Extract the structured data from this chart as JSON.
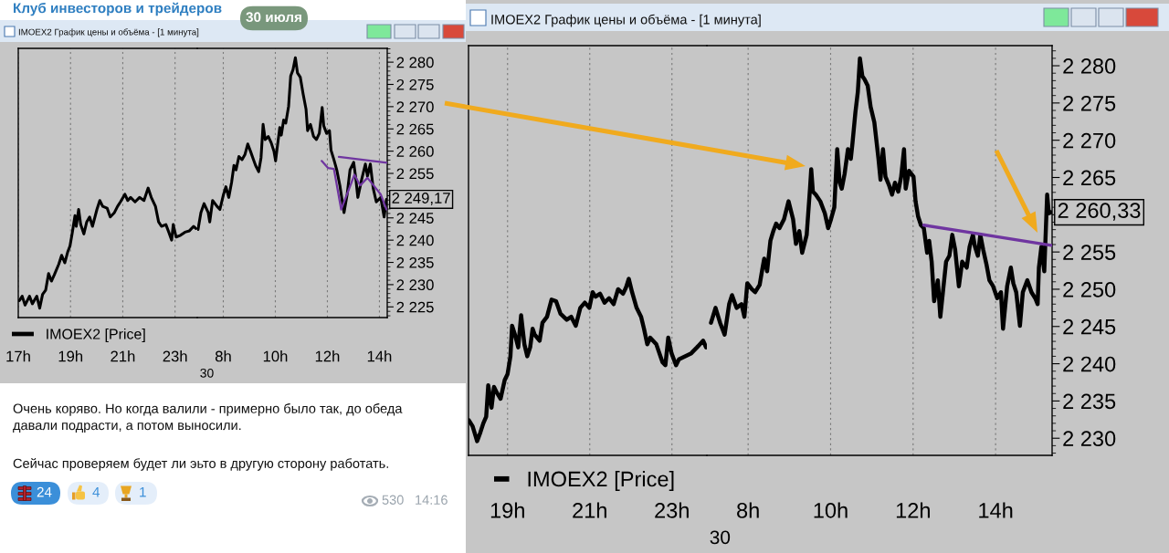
{
  "chart_data": [
    {
      "type": "other",
      "title": "Клуб инвесторов и трейдеров",
      "annotations": [
        "30 июля"
      ]
    },
    {
      "type": "line",
      "title": "IMOEX2 График цены и объёма - [1 минута]",
      "series": [
        {
          "name": "IMOEX2 [Price]",
          "color": "#000000",
          "x": [
            17.04,
            17.15,
            17.26,
            17.43,
            17.54,
            17.71,
            17.82,
            17.93,
            18.05,
            18.16,
            18.27,
            18.38,
            18.55,
            18.66,
            18.78,
            18.89,
            18.98,
            19.06,
            19.17,
            19.22,
            19.31,
            19.39,
            19.51,
            19.62,
            19.73,
            19.84,
            20.01,
            20.12,
            20.23,
            20.4,
            20.52,
            20.68,
            20.8,
            20.91,
            21.08,
            21.19,
            21.3,
            21.47,
            21.64,
            21.81,
            21.97,
            22.09,
            22.25,
            22.37,
            22.48,
            22.65,
            22.76,
            22.87,
            22.93,
            23.04,
            23.21,
            23.38,
            23.55,
            23.71,
            23.8
          ],
          "values": [
            2226.4,
            2227.4,
            2225.4,
            2227.4,
            2225.7,
            2227.4,
            2224.7,
            2227.8,
            2228.8,
            2232.5,
            2230.8,
            2232.2,
            2234.6,
            2236.6,
            2234.9,
            2237.3,
            2238.7,
            2241.4,
            2245.5,
            2243.1,
            2246.9,
            2243.5,
            2241.4,
            2244.1,
            2245.2,
            2243.1,
            2246.9,
            2248.9,
            2247.6,
            2247.2,
            2245.2,
            2246.2,
            2247.6,
            2248.6,
            2250.3,
            2248.9,
            2249.6,
            2248.6,
            2249.6,
            2248.9,
            2251.7,
            2249.6,
            2247.6,
            2244.1,
            2243.1,
            2243.5,
            2241.8,
            2240.0,
            2243.5,
            2240.7,
            2241.1,
            2241.8,
            2242.1,
            2243.1,
            2242.6
          ]
        }
      ],
      "xlim": [
        17.0,
        23.85
      ],
      "xticks": [
        {
          "value": 17,
          "label": "17h"
        },
        {
          "value": 19,
          "label": "19h"
        },
        {
          "value": 21,
          "label": "21h"
        },
        {
          "value": 23,
          "label": "23h"
        }
      ],
      "ylim": [
        2222.6,
        2283.1
      ],
      "tick_labels": "x",
      "grid": "x",
      "legend": "bottom left"
    },
    {
      "type": "line",
      "series": [
        {
          "color": "#000000",
          "x": [
            7.03,
            7.14,
            7.26,
            7.42,
            7.48,
            7.59,
            7.76,
            7.87,
            8.01,
            8.1,
            8.21,
            8.32,
            8.41,
            8.49,
            8.6,
            8.72,
            8.83,
            8.94,
            9.05,
            9.16,
            9.24,
            9.36,
            9.45,
            9.53,
            9.61,
            9.73,
            9.84,
            9.95,
            10.01,
            10.06,
            10.17,
            10.23,
            10.32,
            10.4,
            10.51,
            10.59,
            10.68,
            10.77,
            10.85,
            10.96,
            11.07,
            11.18,
            11.24,
            11.35,
            11.47,
            11.58,
            11.69,
            11.8,
            11.86,
            11.97,
            12.08,
            12.14,
            12.25,
            12.36,
            12.48,
            12.64,
            12.76,
            12.87,
            13.01,
            13.09,
            13.17,
            13.32,
            13.46,
            13.54,
            13.65,
            13.76,
            13.88,
            14.05,
            14.18,
            14.27
          ],
          "values": [
            2242.4,
            2246.2,
            2248.2,
            2246.2,
            2244.1,
            2248.9,
            2247.6,
            2246.9,
            2250.3,
            2252.0,
            2249.6,
            2253.0,
            2256.8,
            2255.8,
            2258.8,
            2258.1,
            2259.2,
            2261.6,
            2259.9,
            2258.1,
            2256.8,
            2255.4,
            2258.5,
            2266.0,
            2262.6,
            2263.3,
            2261.9,
            2259.9,
            2257.8,
            2260.2,
            2265.3,
            2263.6,
            2267.0,
            2266.3,
            2270.1,
            2276.9,
            2278.3,
            2281.0,
            2277.6,
            2276.6,
            2272.8,
            2269.4,
            2264.6,
            2266.0,
            2263.3,
            2262.6,
            2264.0,
            2269.8,
            2265.7,
            2264.0,
            2264.6,
            2260.2,
            2258.1,
            2255.8,
            2252.3,
            2246.2,
            2250.3,
            2255.8,
            2257.5,
            2254.0,
            2249.6,
            2253.7,
            2257.1,
            2254.4,
            2257.1,
            2251.7,
            2248.6,
            2249.6,
            2245.2,
            2249.17
          ],
          "value_labels": [
            null,
            null,
            null,
            null,
            null,
            null,
            null,
            null,
            null,
            null,
            null,
            null,
            null,
            null,
            null,
            null,
            null,
            null,
            null,
            null,
            null,
            null,
            null,
            null,
            null,
            null,
            null,
            null,
            null,
            null,
            null,
            null,
            null,
            null,
            null,
            null,
            null,
            null,
            null,
            null,
            null,
            null,
            null,
            null,
            null,
            null,
            null,
            null,
            null,
            null,
            null,
            null,
            null,
            null,
            null,
            null,
            null,
            null,
            null,
            null,
            null,
            null,
            null,
            null,
            null,
            null,
            null,
            null,
            null,
            "2 249,17"
          ]
        },
        {
          "color": "#6f35a0",
          "x": [
            12.44,
            14.3
          ],
          "values": [
            2258.7,
            2257.4
          ]
        },
        {
          "color": "#6f35a0",
          "x": [
            11.78,
            12.03,
            12.25,
            12.53,
            13.04,
            13.26,
            13.54,
            14.05,
            14.27
          ],
          "values": [
            2257.8,
            2256.2,
            2256.0,
            2246.9,
            2254.7,
            2252.3,
            2254.0,
            2250.3,
            2246.9
          ]
        }
      ],
      "xlim": [
        7.0,
        14.3
      ],
      "xticks": [
        {
          "value": 8,
          "label": "8h"
        },
        {
          "value": 10,
          "label": "10h"
        },
        {
          "value": 12,
          "label": "12h"
        },
        {
          "value": 14,
          "label": "14h"
        }
      ],
      "ylim": [
        2222.6,
        2283.1
      ],
      "yticks": [
        {
          "value": 2225,
          "label": "2 225"
        },
        {
          "value": 2230,
          "label": "2 230"
        },
        {
          "value": 2235,
          "label": "2 235"
        },
        {
          "value": 2240,
          "label": "2 240"
        },
        {
          "value": 2245,
          "label": "2 245"
        },
        {
          "value": 2250,
          "label": null
        },
        {
          "value": 2255,
          "label": "2 255"
        },
        {
          "value": 2260,
          "label": "2 260"
        },
        {
          "value": 2265,
          "label": "2 265"
        },
        {
          "value": 2270,
          "label": "2 270"
        },
        {
          "value": 2275,
          "label": "2 275"
        },
        {
          "value": 2280,
          "label": "2 280"
        }
      ],
      "grid": "x",
      "annotations": [
        "30"
      ]
    },
    {
      "type": "other",
      "annotations": [
        "Очень коряво. Но когда валили - примерно было так, до обеда\nдавали подрасти, а потом выносили.",
        "Сейчас проверяем будет ли эьто в другую сторону работать.",
        "24",
        "4",
        "1",
        "530",
        "14:16"
      ]
    },
    {
      "type": "line",
      "title": "IMOEX2 График цены и объёма - [1 минута]",
      "series": [
        {
          "name": "IMOEX2 [Price]",
          "color": "#000000",
          "x": [
            18.06,
            18.15,
            18.26,
            18.34,
            18.41,
            18.48,
            18.53,
            18.61,
            18.67,
            18.74,
            18.83,
            18.93,
            19.0,
            19.07,
            19.11,
            19.18,
            19.26,
            19.33,
            19.41,
            19.48,
            19.55,
            19.61,
            19.66,
            19.78,
            19.85,
            19.96,
            20.07,
            20.18,
            20.29,
            20.44,
            20.55,
            20.66,
            20.77,
            20.88,
            20.99,
            21.07,
            21.14,
            21.25,
            21.36,
            21.47,
            21.58,
            21.69,
            21.81,
            21.88,
            21.95,
            22.03,
            22.14,
            22.25,
            22.32,
            22.4,
            22.47,
            22.62,
            22.77,
            22.84,
            22.91,
            22.99,
            23.1,
            23.17,
            23.32,
            23.47,
            23.61,
            23.76,
            23.83
          ],
          "values": [
            2232.4,
            2231.6,
            2229.6,
            2230.8,
            2232.0,
            2232.9,
            2237.1,
            2234.1,
            2236.9,
            2236.1,
            2235.3,
            2237.8,
            2238.6,
            2241.0,
            2245.1,
            2243.9,
            2242.2,
            2246.5,
            2242.6,
            2241.0,
            2242.2,
            2244.7,
            2243.9,
            2243.1,
            2245.5,
            2246.3,
            2248.6,
            2248.4,
            2246.7,
            2245.9,
            2246.3,
            2245.1,
            2247.5,
            2248.2,
            2247.5,
            2249.6,
            2249.0,
            2249.4,
            2248.2,
            2248.8,
            2248.0,
            2250.0,
            2249.4,
            2250.2,
            2251.4,
            2249.6,
            2247.5,
            2246.3,
            2244.7,
            2242.6,
            2243.5,
            2242.6,
            2240.2,
            2239.8,
            2243.5,
            2241.4,
            2239.8,
            2240.6,
            2241.0,
            2241.4,
            2242.2,
            2243.1,
            2242.2
          ]
        }
      ],
      "xlim": [
        18.05,
        23.85
      ],
      "xticks": [
        {
          "value": 19,
          "label": "19h"
        },
        {
          "value": 21,
          "label": "21h"
        },
        {
          "value": 23,
          "label": "23h"
        }
      ],
      "ylim": [
        2227.7,
        2282.7
      ],
      "tick_labels": "x",
      "grid": "x",
      "legend": "bottom left"
    },
    {
      "type": "line",
      "series": [
        {
          "color": "#000000",
          "x": [
            7.1,
            7.21,
            7.32,
            7.43,
            7.54,
            7.61,
            7.72,
            7.84,
            7.91,
            7.98,
            8.09,
            8.17,
            8.28,
            8.35,
            8.39,
            8.46,
            8.54,
            8.61,
            8.68,
            8.76,
            8.87,
            8.98,
            9.09,
            9.16,
            9.24,
            9.31,
            9.42,
            9.5,
            9.53,
            9.57,
            9.64,
            9.75,
            9.86,
            9.94,
            10.01,
            10.09,
            10.16,
            10.22,
            10.27,
            10.34,
            10.42,
            10.49,
            10.53,
            10.6,
            10.66,
            10.71,
            10.77,
            10.82,
            10.9,
            10.97,
            11.06,
            11.16,
            11.21,
            11.27,
            11.33,
            11.42,
            11.49,
            11.56,
            11.64,
            11.71,
            11.78,
            11.82,
            11.9,
            12.01,
            12.06,
            12.12,
            12.19,
            12.26,
            12.34,
            12.39,
            12.45,
            12.51,
            12.6,
            12.66,
            12.73,
            12.8,
            12.88,
            12.95,
            13.02,
            13.11,
            13.19,
            13.3,
            13.37,
            13.45,
            13.5,
            13.57,
            13.63,
            13.7,
            13.78,
            13.85,
            13.94,
            14.04,
            14.13,
            14.18,
            14.28,
            14.37,
            14.43,
            14.5,
            14.59,
            14.66,
            14.77,
            14.87,
            14.96,
            15.02,
            15.05,
            15.11,
            15.18,
            15.25,
            15.29,
            15.34
          ],
          "values": [
            2245.5,
            2247.5,
            2245.5,
            2243.9,
            2248.0,
            2249.2,
            2247.5,
            2248.0,
            2246.3,
            2250.8,
            2250.0,
            2249.6,
            2250.6,
            2252.9,
            2254.1,
            2252.4,
            2256.5,
            2257.8,
            2258.8,
            2258.2,
            2259.4,
            2261.8,
            2259.4,
            2256.1,
            2257.8,
            2254.9,
            2257.3,
            2263.5,
            2266.1,
            2263.1,
            2262.7,
            2261.8,
            2260.2,
            2258.2,
            2259.4,
            2261.0,
            2268.8,
            2264.3,
            2263.5,
            2265.5,
            2268.8,
            2267.5,
            2269.6,
            2273.7,
            2276.5,
            2281.0,
            2278.6,
            2278.2,
            2277.3,
            2274.5,
            2272.4,
            2267.5,
            2264.7,
            2268.8,
            2265.1,
            2263.9,
            2262.7,
            2264.3,
            2263.1,
            2265.1,
            2268.8,
            2263.5,
            2265.9,
            2265.1,
            2261.8,
            2259.8,
            2258.6,
            2258.2,
            2254.9,
            2256.5,
            2253.7,
            2248.4,
            2251.2,
            2246.3,
            2250.0,
            2253.7,
            2254.5,
            2257.3,
            2255.3,
            2250.4,
            2253.7,
            2252.9,
            2255.7,
            2257.3,
            2255.7,
            2254.5,
            2257.3,
            2255.3,
            2253.3,
            2251.2,
            2250.4,
            2248.8,
            2249.6,
            2244.7,
            2250.4,
            2252.9,
            2250.8,
            2249.6,
            2245.1,
            2249.6,
            2251.2,
            2249.6,
            2248.8,
            2248.0,
            2252.9,
            2255.7,
            2252.4,
            2262.7,
            2260.2,
            2260.33
          ],
          "value_labels": [
            null,
            null,
            null,
            null,
            null,
            null,
            null,
            null,
            null,
            null,
            null,
            null,
            null,
            null,
            null,
            null,
            null,
            null,
            null,
            null,
            null,
            null,
            null,
            null,
            null,
            null,
            null,
            null,
            null,
            null,
            null,
            null,
            null,
            null,
            null,
            null,
            null,
            null,
            null,
            null,
            null,
            null,
            null,
            null,
            null,
            null,
            null,
            null,
            null,
            null,
            null,
            null,
            null,
            null,
            null,
            null,
            null,
            null,
            null,
            null,
            null,
            null,
            null,
            null,
            null,
            null,
            null,
            null,
            null,
            null,
            null,
            null,
            null,
            null,
            null,
            null,
            null,
            null,
            null,
            null,
            null,
            null,
            null,
            null,
            null,
            null,
            null,
            null,
            null,
            null,
            null,
            null,
            null,
            null,
            null,
            null,
            null,
            null,
            null,
            null,
            null,
            null,
            null,
            null,
            null,
            null,
            null,
            null,
            null,
            "2 260,33"
          ]
        },
        {
          "color": "#6f35a0",
          "x": [
            12.26,
            15.35
          ],
          "values": [
            2258.6,
            2255.9
          ]
        }
      ],
      "xlim": [
        7.0,
        15.37
      ],
      "xticks": [
        {
          "value": 8,
          "label": "8h"
        },
        {
          "value": 10,
          "label": "10h"
        },
        {
          "value": 12,
          "label": "12h"
        },
        {
          "value": 14,
          "label": "14h"
        }
      ],
      "ylim": [
        2227.7,
        2282.7
      ],
      "yticks": [
        {
          "value": 2230,
          "label": "2 230"
        },
        {
          "value": 2235,
          "label": "2 235"
        },
        {
          "value": 2240,
          "label": "2 240"
        },
        {
          "value": 2245,
          "label": "2 245"
        },
        {
          "value": 2250,
          "label": "2 250"
        },
        {
          "value": 2255,
          "label": "2 255"
        },
        {
          "value": 2260,
          "label": null
        },
        {
          "value": 2265,
          "label": "2 265"
        },
        {
          "value": 2270,
          "label": "2 270"
        },
        {
          "value": 2275,
          "label": "2 275"
        },
        {
          "value": 2280,
          "label": "2 280"
        }
      ],
      "grid": "x",
      "annotations": [
        "30"
      ]
    }
  ]
}
